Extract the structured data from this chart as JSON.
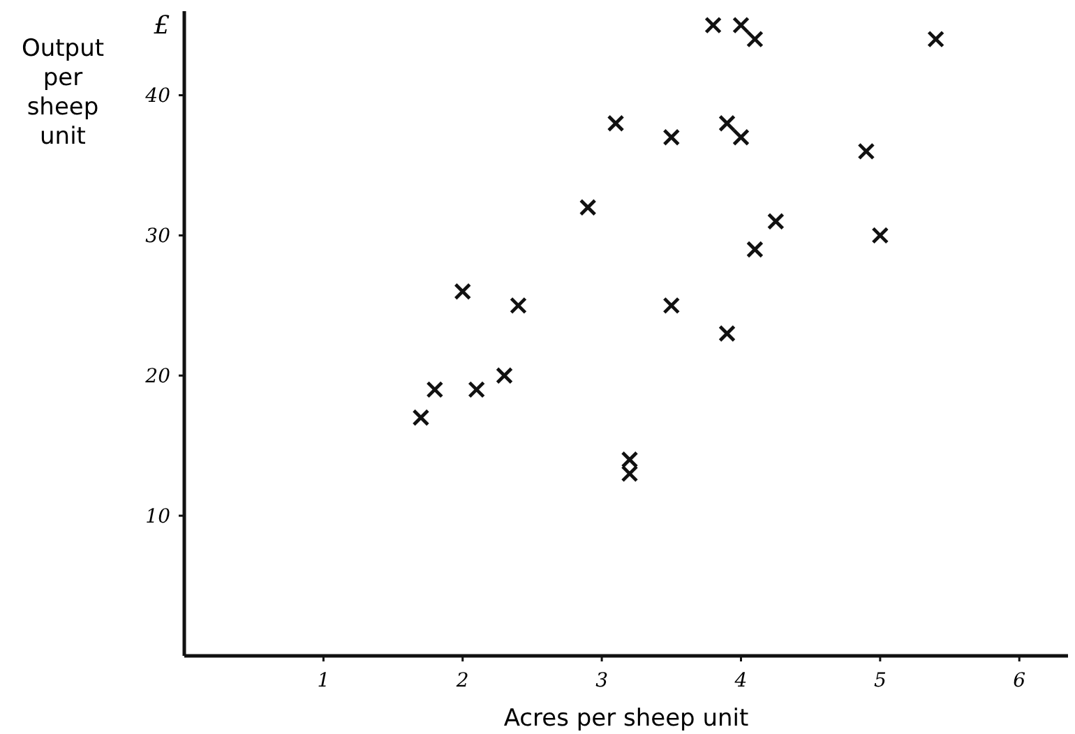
{
  "chart_data": {
    "type": "scatter",
    "xlabel": "Acres per sheep unit",
    "ylabel": "Output per sheep unit",
    "annotations": [
      "£"
    ],
    "x": [
      1.7,
      1.8,
      2.0,
      2.1,
      2.3,
      2.4,
      2.9,
      3.1,
      3.2,
      3.2,
      3.5,
      3.5,
      3.8,
      3.9,
      3.9,
      4.0,
      4.0,
      4.1,
      4.1,
      4.25,
      4.9,
      5.0,
      5.4
    ],
    "series": [
      {
        "color": "#111111",
        "values": [
          17,
          19,
          26,
          19,
          20,
          25,
          32,
          38,
          14,
          13,
          37,
          25,
          45,
          38,
          23,
          45,
          37,
          44,
          29,
          31,
          36,
          30,
          44
        ]
      }
    ],
    "xlim": [
      0,
      6.35
    ],
    "ylim": [
      0,
      46
    ],
    "xticks": [
      1,
      2,
      3,
      4,
      5,
      6
    ],
    "yticks": [
      10,
      20,
      30,
      40
    ],
    "marker": "cross"
  }
}
